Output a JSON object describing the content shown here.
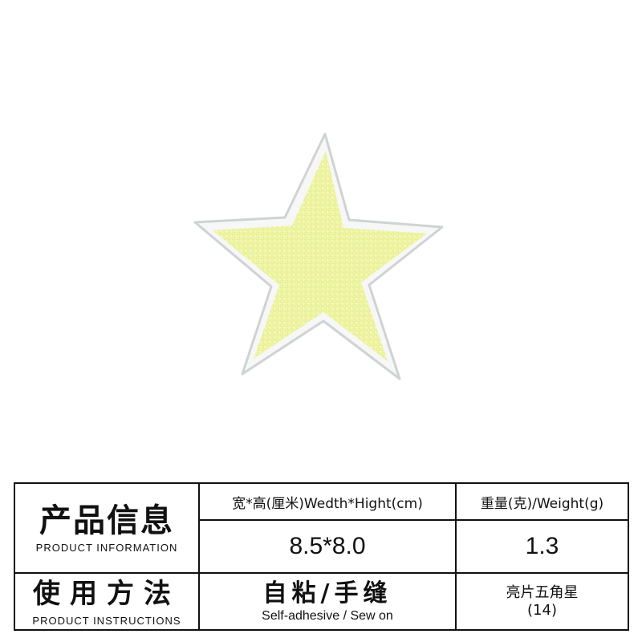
{
  "product_image": {
    "subject": "star-patch",
    "colors": {
      "fill": "#f2f7a8",
      "border": "#f6f6f6",
      "outline": "#cfd3d3",
      "background": "#ffffff"
    }
  },
  "table": {
    "info_title_cn": "产品信息",
    "info_title_en": "PRODUCT INFORMATION",
    "size_header": "宽*高(厘米)Wedth*Hight(cm)",
    "weight_header": "重量(克)/Weight(g)",
    "size_value": "8.5*8.0",
    "weight_value": "1.3",
    "instr_title_cn": "使用方法",
    "instr_title_en": "PRODUCT INSTRUCTIONS",
    "method_cn": "自粘/手缝",
    "method_en": "Self-adhesive / Sew on",
    "style_cn": "亮片五角星",
    "style_number": "(14)"
  }
}
